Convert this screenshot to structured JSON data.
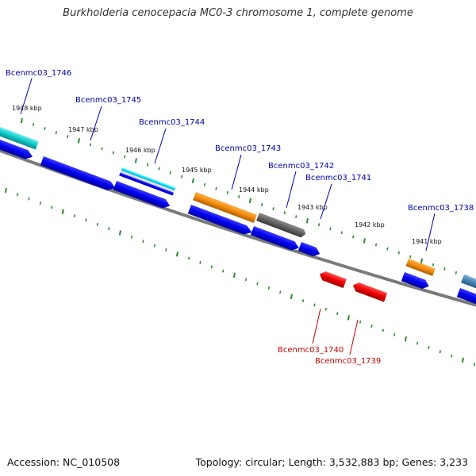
{
  "title": "Burkholderia cenocepacia MC0-3 chromosome 1, complete genome",
  "footer": {
    "accession": "Accession: NC_010508",
    "topology": "Topology: circular; Length: 3,532,883 bp; Genes: 3,233"
  },
  "colors": {
    "backbone": "#808080",
    "tick": "#2e8b2e",
    "label_blue": "#0000b0",
    "label_red": "#cc0000",
    "cds": "#0000ee",
    "trna": "#00cccc",
    "rrna": "#e8820a",
    "pseudo": "#606060",
    "misc": "#00e5ff",
    "red_gene": "#ee0000",
    "steel": "#4682b4"
  },
  "kbp_labels": [
    {
      "value": 1948,
      "text": "1948 kbp"
    },
    {
      "value": 1947,
      "text": "1947 kbp"
    },
    {
      "value": 1946,
      "text": "1946 kbp"
    },
    {
      "value": 1945,
      "text": "1945 kbp"
    },
    {
      "value": 1944,
      "text": "1944 kbp"
    },
    {
      "value": 1943,
      "text": "1943 kbp"
    },
    {
      "value": 1942,
      "text": "1942 kbp"
    },
    {
      "value": 1941,
      "text": "1941 kbp"
    }
  ],
  "gene_labels": [
    {
      "text": "Bcenmc03_1746",
      "color": "blue"
    },
    {
      "text": "Bcenmc03_1745",
      "color": "blue"
    },
    {
      "text": "Bcenmc03_1744",
      "color": "blue"
    },
    {
      "text": "Bcenmc03_1743",
      "color": "blue"
    },
    {
      "text": "Bcenmc03_1742",
      "color": "blue"
    },
    {
      "text": "Bcenmc03_1741",
      "color": "blue"
    },
    {
      "text": "Bcenmc03_1738",
      "color": "blue"
    },
    {
      "text": "Bcenmc03_1740",
      "color": "red"
    },
    {
      "text": "Bcenmc03_1739",
      "color": "red"
    }
  ]
}
